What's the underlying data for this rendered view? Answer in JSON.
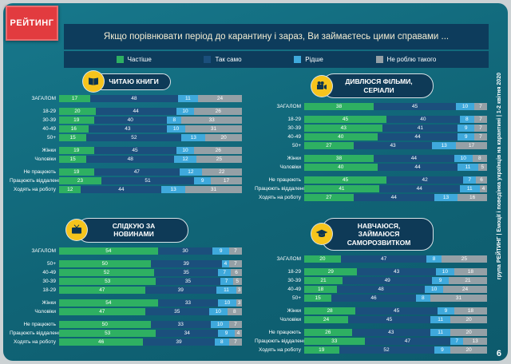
{
  "page": {
    "logo_text": "РЕЙТИНГ",
    "title": "Якщо порівнювати період до карантину і зараз, Ви займаєтесь цими справами ...",
    "sidebar_text": "група РЕЙТИНГ | Емоції і поведінка українців на карантині | 1-2 квітня 2020",
    "page_number": "6"
  },
  "colors": {
    "background_teal": "#106476",
    "band_navy": "#0d3c5c",
    "header_pill": "#0e3a57",
    "icon_circle_yellow": "#f6c41c",
    "logo_red": "#e23b3f"
  },
  "legend": [
    {
      "label": "Частіше",
      "color": "#2eb062"
    },
    {
      "label": "Так само",
      "color": "#1b4f7c"
    },
    {
      "label": "Рідше",
      "color": "#3fa9dc"
    },
    {
      "label": "Не роблю такого",
      "color": "#95a0a6"
    }
  ],
  "chart_data": [
    {
      "type": "bar",
      "stacked": true,
      "unit": "%",
      "title": "ЧИТАЮ КНИГИ",
      "icon": "book-icon",
      "series": [
        "Частіше",
        "Так само",
        "Рідше",
        "Не роблю такого"
      ],
      "rows": [
        {
          "label": "ЗАГАЛОМ",
          "group": 0,
          "values": [
            17,
            48,
            11,
            24
          ]
        },
        {
          "label": "18-29",
          "group": 1,
          "values": [
            20,
            44,
            10,
            26
          ]
        },
        {
          "label": "30-39",
          "group": 1,
          "values": [
            19,
            40,
            8,
            33
          ]
        },
        {
          "label": "40-49",
          "group": 1,
          "values": [
            16,
            43,
            10,
            31
          ]
        },
        {
          "label": "50+",
          "group": 1,
          "values": [
            15,
            52,
            13,
            20
          ]
        },
        {
          "label": "Жінки",
          "group": 2,
          "values": [
            19,
            45,
            10,
            26
          ]
        },
        {
          "label": "Чоловіки",
          "group": 2,
          "values": [
            15,
            48,
            12,
            25
          ]
        },
        {
          "label": "Не працюють",
          "group": 3,
          "values": [
            19,
            47,
            12,
            22
          ]
        },
        {
          "label": "Працюють віддалено",
          "group": 3,
          "values": [
            23,
            51,
            9,
            17
          ]
        },
        {
          "label": "Ходять на роботу",
          "group": 3,
          "values": [
            12,
            44,
            13,
            31
          ]
        }
      ]
    },
    {
      "type": "bar",
      "stacked": true,
      "unit": "%",
      "title": "ДИВЛЮСЯ ФІЛЬМИ, СЕРІАЛИ",
      "icon": "film-camera-icon",
      "series": [
        "Частіше",
        "Так само",
        "Рідше",
        "Не роблю такого"
      ],
      "rows": [
        {
          "label": "ЗАГАЛОМ",
          "group": 0,
          "values": [
            38,
            45,
            10,
            7
          ]
        },
        {
          "label": "18-29",
          "group": 1,
          "values": [
            45,
            40,
            8,
            7
          ]
        },
        {
          "label": "30-39",
          "group": 1,
          "values": [
            43,
            41,
            9,
            7
          ]
        },
        {
          "label": "40-49",
          "group": 1,
          "values": [
            40,
            44,
            9,
            7
          ]
        },
        {
          "label": "50+",
          "group": 1,
          "values": [
            27,
            43,
            13,
            17
          ]
        },
        {
          "label": "Жінки",
          "group": 2,
          "values": [
            38,
            44,
            10,
            8
          ]
        },
        {
          "label": "Чоловіки",
          "group": 2,
          "values": [
            40,
            44,
            11,
            5
          ]
        },
        {
          "label": "Не працюють",
          "group": 3,
          "values": [
            45,
            42,
            7,
            6
          ]
        },
        {
          "label": "Працюють віддалено",
          "group": 3,
          "values": [
            41,
            44,
            11,
            4
          ]
        },
        {
          "label": "Ходять на роботу",
          "group": 3,
          "values": [
            27,
            44,
            13,
            16
          ]
        }
      ]
    },
    {
      "type": "bar",
      "stacked": true,
      "unit": "%",
      "title": "СЛІДКУЮ ЗА НОВИНАМИ",
      "icon": "tv-icon",
      "series": [
        "Частіше",
        "Так само",
        "Рідше",
        "Не роблю такого"
      ],
      "rows": [
        {
          "label": "ЗАГАЛОМ",
          "group": 0,
          "values": [
            54,
            30,
            9,
            7
          ]
        },
        {
          "label": "50+",
          "group": 1,
          "values": [
            50,
            39,
            4,
            7
          ]
        },
        {
          "label": "40-49",
          "group": 1,
          "values": [
            52,
            35,
            7,
            6
          ]
        },
        {
          "label": "30-39",
          "group": 1,
          "values": [
            53,
            35,
            7,
            5
          ]
        },
        {
          "label": "18-29",
          "group": 1,
          "values": [
            47,
            39,
            11,
            3
          ]
        },
        {
          "label": "Жінки",
          "group": 2,
          "values": [
            54,
            33,
            10,
            3
          ]
        },
        {
          "label": "Чоловіки",
          "group": 2,
          "values": [
            47,
            35,
            10,
            8
          ]
        },
        {
          "label": "Не працюють",
          "group": 3,
          "values": [
            50,
            33,
            10,
            7
          ]
        },
        {
          "label": "Працюють віддалено",
          "group": 3,
          "values": [
            53,
            34,
            9,
            4
          ]
        },
        {
          "label": "Ходять на роботу",
          "group": 3,
          "values": [
            46,
            39,
            8,
            7
          ]
        }
      ]
    },
    {
      "type": "bar",
      "stacked": true,
      "unit": "%",
      "title": "НАВЧАЮСЯ, ЗАЙМАЮСЯ САМОРОЗВИТКОМ",
      "icon": "graduation-cap-icon",
      "series": [
        "Частіше",
        "Так само",
        "Рідше",
        "Не роблю такого"
      ],
      "rows": [
        {
          "label": "ЗАГАЛОМ",
          "group": 0,
          "values": [
            20,
            47,
            8,
            25
          ]
        },
        {
          "label": "18-29",
          "group": 1,
          "values": [
            29,
            43,
            10,
            18
          ]
        },
        {
          "label": "30-39",
          "group": 1,
          "values": [
            21,
            49,
            9,
            21
          ]
        },
        {
          "label": "40-49",
          "group": 1,
          "values": [
            18,
            48,
            10,
            24
          ]
        },
        {
          "label": "50+",
          "group": 1,
          "values": [
            15,
            46,
            8,
            31
          ]
        },
        {
          "label": "Жінки",
          "group": 2,
          "values": [
            28,
            45,
            9,
            18
          ]
        },
        {
          "label": "Чоловіки",
          "group": 2,
          "values": [
            24,
            45,
            11,
            20
          ]
        },
        {
          "label": "Не працюють",
          "group": 3,
          "values": [
            26,
            43,
            11,
            20
          ]
        },
        {
          "label": "Працюють віддалено",
          "group": 3,
          "values": [
            33,
            47,
            7,
            13
          ]
        },
        {
          "label": "Ходять на роботу",
          "group": 3,
          "values": [
            19,
            52,
            9,
            20
          ]
        }
      ]
    }
  ]
}
